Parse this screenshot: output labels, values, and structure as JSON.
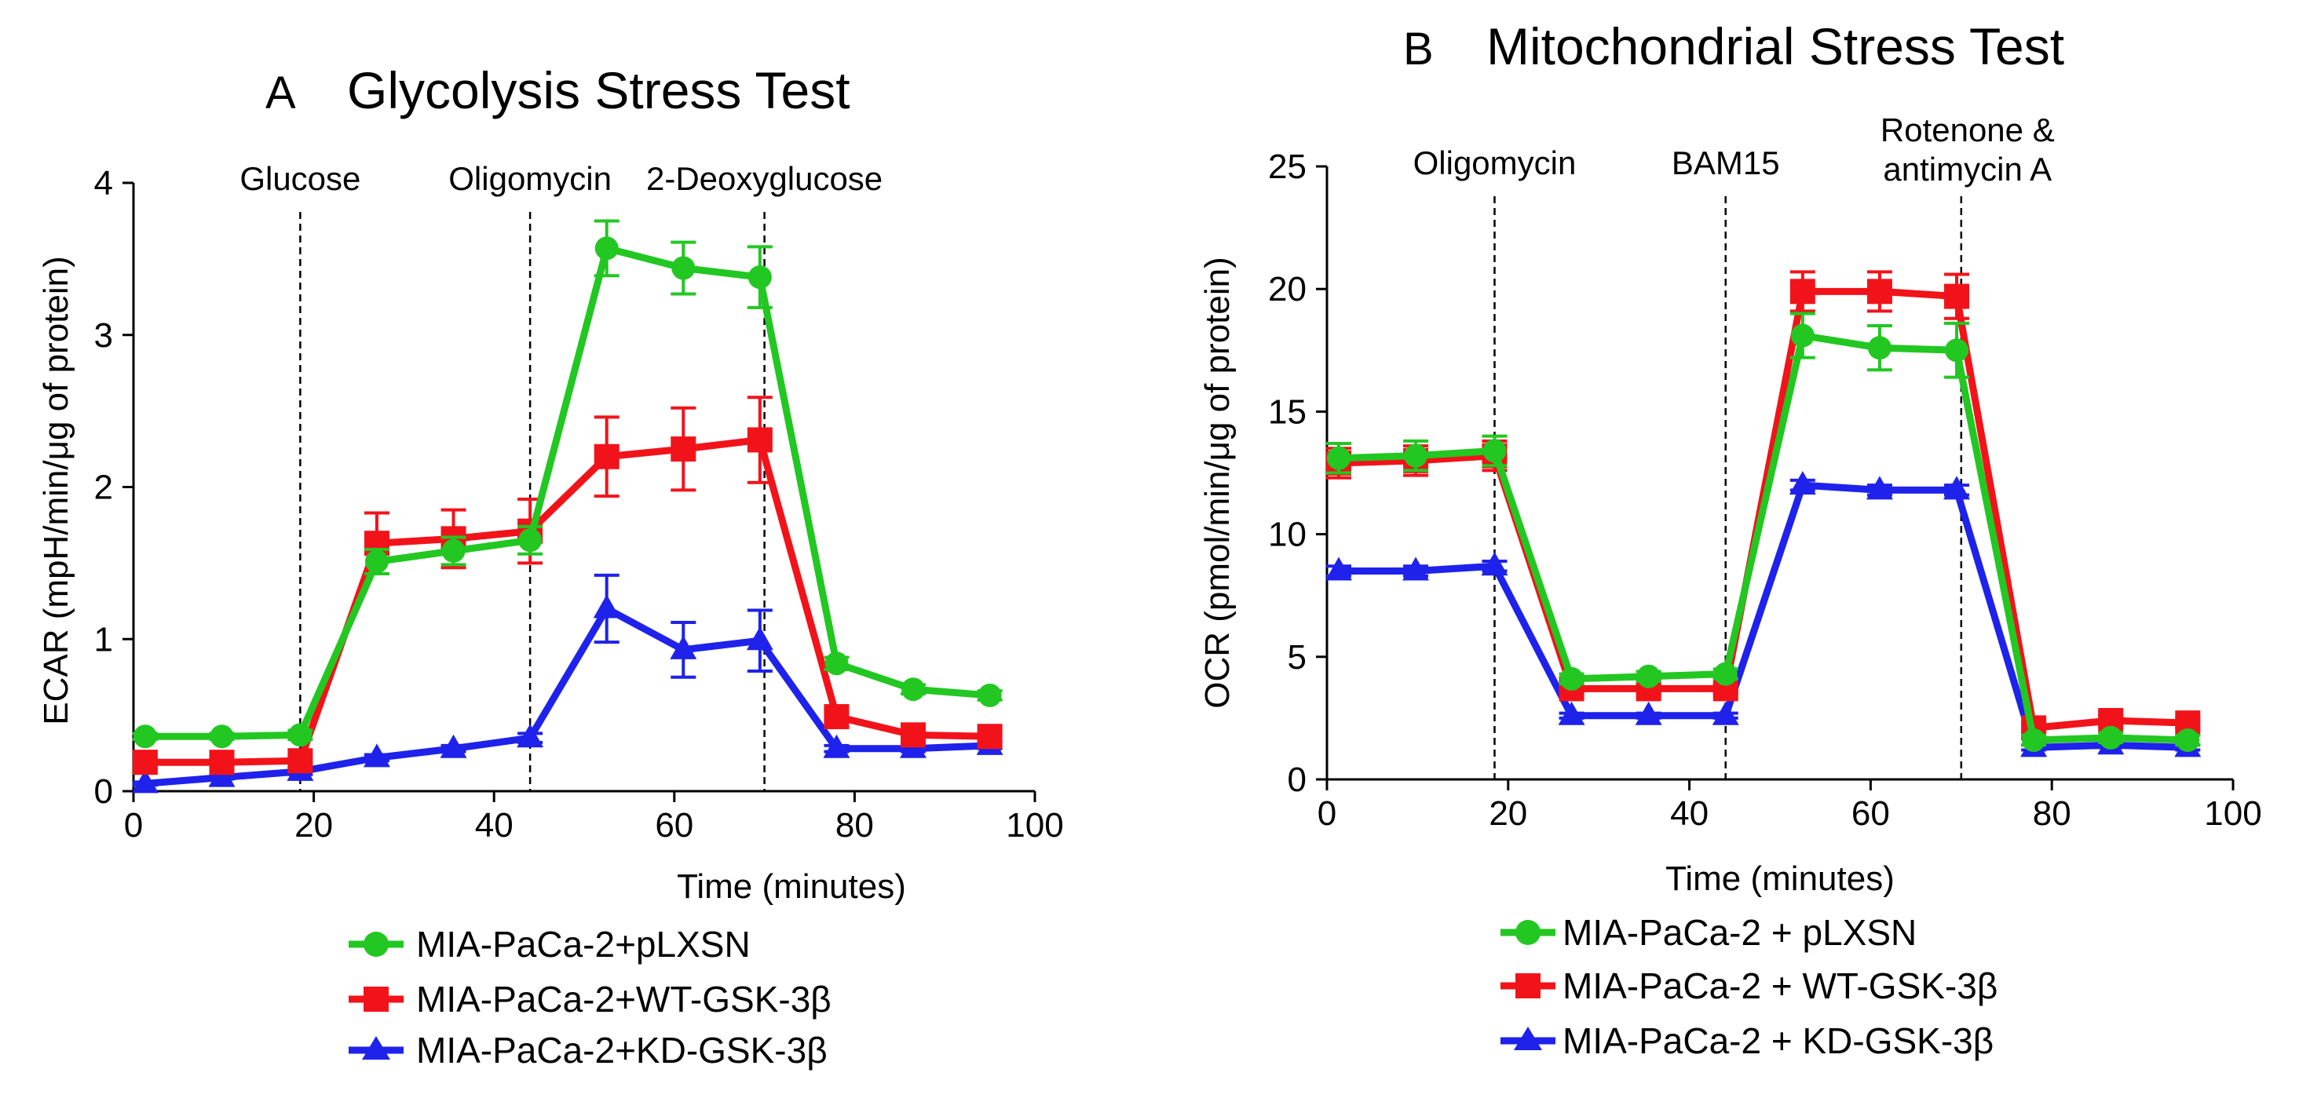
{
  "chart_data": [
    {
      "id": "A",
      "type": "line",
      "panel_letter": "A",
      "title": "Glycolysis Stress Test",
      "xlabel": "Time (minutes)",
      "ylabel": "ECAR (mpH/min/μg of protein)",
      "xlim": [
        0,
        100
      ],
      "ylim": [
        0,
        4
      ],
      "xticks": [
        0,
        20,
        40,
        60,
        80,
        100
      ],
      "yticks": [
        0,
        1,
        2,
        3,
        4
      ],
      "x": [
        1.3,
        9.8,
        18.5,
        27,
        35.5,
        44,
        52.5,
        61,
        69.5,
        78,
        86.5,
        95
      ],
      "injections": [
        {
          "x": 18.5,
          "label": "Glucose"
        },
        {
          "x": 44,
          "label": "Oligomycin"
        },
        {
          "x": 70,
          "label": "2-Deoxyglucose"
        }
      ],
      "series": [
        {
          "name": "MIA-PaCa-2+pLXSN",
          "color": "#22C722",
          "marker": "circle",
          "values": [
            0.36,
            0.36,
            0.37,
            1.51,
            1.58,
            1.65,
            3.57,
            3.44,
            3.38,
            0.84,
            0.67,
            0.63
          ],
          "errors": [
            0.02,
            0.02,
            0.03,
            0.08,
            0.09,
            0.09,
            0.18,
            0.17,
            0.2,
            0.04,
            0.03,
            0.03
          ]
        },
        {
          "name": "MIA-PaCa-2+WT-GSK-3β",
          "color": "#F2131A",
          "marker": "square",
          "values": [
            0.19,
            0.19,
            0.2,
            1.63,
            1.66,
            1.71,
            2.2,
            2.25,
            2.31,
            0.49,
            0.37,
            0.36
          ],
          "errors": [
            0.02,
            0.02,
            0.02,
            0.2,
            0.19,
            0.21,
            0.26,
            0.27,
            0.28,
            0.03,
            0.03,
            0.03
          ]
        },
        {
          "name": "MIA-PaCa-2+KD-GSK-3β",
          "color": "#1E22EB",
          "marker": "triangle",
          "values": [
            0.05,
            0.09,
            0.13,
            0.22,
            0.28,
            0.35,
            1.2,
            0.93,
            0.99,
            0.28,
            0.28,
            0.3
          ],
          "errors": [
            0.01,
            0.01,
            0.02,
            0.02,
            0.02,
            0.03,
            0.22,
            0.18,
            0.2,
            0.02,
            0.02,
            0.02
          ]
        }
      ]
    },
    {
      "id": "B",
      "type": "line",
      "panel_letter": "B",
      "title": "Mitochondrial Stress Test",
      "xlabel": "Time (minutes)",
      "ylabel": "OCR (pmol/min/μg of protein)",
      "xlim": [
        0,
        100
      ],
      "ylim": [
        0,
        25
      ],
      "xticks": [
        0,
        20,
        40,
        60,
        80,
        100
      ],
      "yticks": [
        0,
        5,
        10,
        15,
        20,
        25
      ],
      "x": [
        1.3,
        9.8,
        18.5,
        27,
        35.5,
        44,
        52.5,
        61,
        69.5,
        78,
        86.5,
        95
      ],
      "injections": [
        {
          "x": 18.5,
          "label": "Oligomycin"
        },
        {
          "x": 44,
          "label": "BAM15"
        },
        {
          "x": 70,
          "label": "Rotenone & antimycin A",
          "lines": [
            "Rotenone &",
            "antimycin A"
          ]
        }
      ],
      "series": [
        {
          "name": "MIA-PaCa-2 + pLXSN",
          "color": "#22C722",
          "marker": "circle",
          "values": [
            13.1,
            13.2,
            13.4,
            4.1,
            4.2,
            4.3,
            18.1,
            17.6,
            17.5,
            1.6,
            1.7,
            1.6
          ],
          "errors": [
            0.6,
            0.6,
            0.6,
            0.2,
            0.2,
            0.2,
            0.9,
            0.9,
            1.1,
            0.2,
            0.2,
            0.2
          ]
        },
        {
          "name": "MIA-PaCa-2 + WT-GSK-3β",
          "color": "#F2131A",
          "marker": "square",
          "values": [
            12.9,
            13.0,
            13.2,
            3.7,
            3.7,
            3.7,
            19.9,
            19.9,
            19.7,
            2.1,
            2.4,
            2.3
          ],
          "errors": [
            0.6,
            0.6,
            0.6,
            0.2,
            0.2,
            0.2,
            0.8,
            0.8,
            0.9,
            0.2,
            0.2,
            0.2
          ]
        },
        {
          "name": "MIA-PaCa-2 + KD-GSK-3β",
          "color": "#1E22EB",
          "marker": "triangle",
          "values": [
            8.5,
            8.5,
            8.7,
            2.6,
            2.6,
            2.6,
            12.0,
            11.8,
            11.8,
            1.3,
            1.4,
            1.3
          ],
          "errors": [
            0.2,
            0.2,
            0.2,
            0.1,
            0.1,
            0.1,
            0.2,
            0.2,
            0.2,
            0.1,
            0.1,
            0.1
          ]
        }
      ]
    }
  ]
}
